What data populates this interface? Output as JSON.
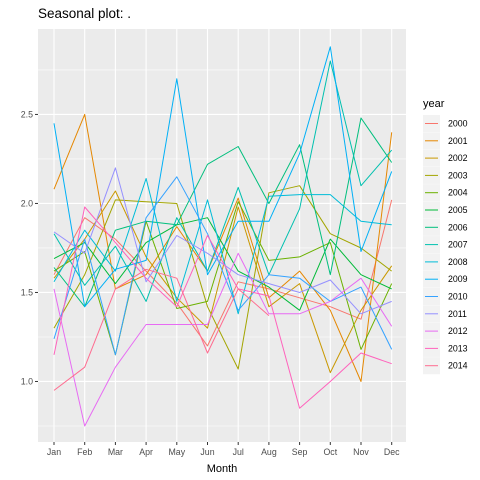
{
  "chart_data": {
    "type": "line",
    "title": "Seasonal plot: .",
    "xlabel": "Month",
    "ylabel": "",
    "categories": [
      "Jan",
      "Feb",
      "Mar",
      "Apr",
      "May",
      "Jun",
      "Jul",
      "Aug",
      "Sep",
      "Oct",
      "Nov",
      "Dec"
    ],
    "y_ticks": [
      1.0,
      1.5,
      2.0,
      2.5
    ],
    "y_tick_labels": [
      "1.0",
      "1.5",
      "2.0",
      "2.5"
    ],
    "ylim": [
      0.66,
      2.98
    ],
    "grid": true,
    "legend": {
      "title": "year",
      "position": "right"
    },
    "series": [
      {
        "name": "2000",
        "color": "#F8766D",
        "values": [
          1.6,
          1.92,
          1.8,
          1.62,
          1.44,
          1.2,
          1.56,
          1.52,
          1.47,
          1.42,
          1.35,
          2.02
        ]
      },
      {
        "name": "2001",
        "color": "#E58700",
        "values": [
          2.08,
          2.5,
          1.52,
          1.6,
          1.87,
          1.62,
          2.03,
          1.47,
          1.62,
          1.4,
          1.0,
          2.4
        ]
      },
      {
        "name": "2002",
        "color": "#C99800",
        "values": [
          1.58,
          1.8,
          2.07,
          1.7,
          1.47,
          1.3,
          1.98,
          1.42,
          1.55,
          1.05,
          1.4,
          1.65
        ]
      },
      {
        "name": "2003",
        "color": "#A3A500",
        "values": [
          1.3,
          1.6,
          2.02,
          2.01,
          2.0,
          1.42,
          1.07,
          2.06,
          2.1,
          1.83,
          1.75,
          1.62
        ]
      },
      {
        "name": "2004",
        "color": "#6BB100",
        "values": [
          1.62,
          1.73,
          1.15,
          1.9,
          1.41,
          1.45,
          2.01,
          1.68,
          1.7,
          1.78,
          1.18,
          1.55
        ]
      },
      {
        "name": "2005",
        "color": "#00BA38",
        "values": [
          1.69,
          1.78,
          1.55,
          1.78,
          1.88,
          1.92,
          1.62,
          1.53,
          1.4,
          1.8,
          1.6,
          1.52
        ]
      },
      {
        "name": "2006",
        "color": "#00BF7D",
        "values": [
          1.64,
          1.42,
          1.85,
          1.9,
          1.88,
          2.22,
          2.32,
          2.0,
          2.33,
          1.6,
          2.48,
          2.23
        ]
      },
      {
        "name": "2007",
        "color": "#00C0AF",
        "values": [
          1.83,
          1.54,
          1.76,
          1.45,
          1.92,
          1.62,
          2.09,
          1.6,
          1.97,
          2.8,
          2.1,
          2.3
        ]
      },
      {
        "name": "2008",
        "color": "#00BCD8",
        "values": [
          1.56,
          1.85,
          1.62,
          2.14,
          1.45,
          2.02,
          1.38,
          2.04,
          2.05,
          2.05,
          1.9,
          1.88
        ]
      },
      {
        "name": "2009",
        "color": "#00B0F6",
        "values": [
          2.45,
          1.42,
          1.63,
          1.68,
          2.7,
          1.6,
          1.9,
          1.9,
          2.28,
          2.88,
          1.73,
          2.18
        ]
      },
      {
        "name": "2010",
        "color": "#35A2FF",
        "values": [
          1.24,
          1.8,
          1.15,
          1.92,
          2.15,
          1.83,
          1.4,
          1.6,
          1.58,
          1.45,
          1.53,
          1.18
        ]
      },
      {
        "name": "2011",
        "color": "#9590FF",
        "values": [
          1.84,
          1.72,
          2.2,
          1.56,
          1.82,
          1.72,
          1.6,
          1.55,
          1.5,
          1.57,
          1.38,
          1.45
        ]
      },
      {
        "name": "2012",
        "color": "#E76BF3",
        "values": [
          1.52,
          0.75,
          1.08,
          1.32,
          1.32,
          1.32,
          1.72,
          1.38,
          1.38,
          1.45,
          1.58,
          1.31
        ]
      },
      {
        "name": "2013",
        "color": "#FF62BC",
        "values": [
          1.15,
          1.98,
          1.78,
          1.58,
          1.42,
          1.82,
          1.52,
          1.48,
          0.85,
          1.0,
          1.16,
          1.1
        ]
      },
      {
        "name": "2014",
        "color": "#FF6C90",
        "values": [
          0.95,
          1.08,
          1.52,
          1.63,
          1.58,
          1.16,
          1.52,
          1.37,
          null,
          null,
          null,
          null
        ]
      }
    ]
  }
}
